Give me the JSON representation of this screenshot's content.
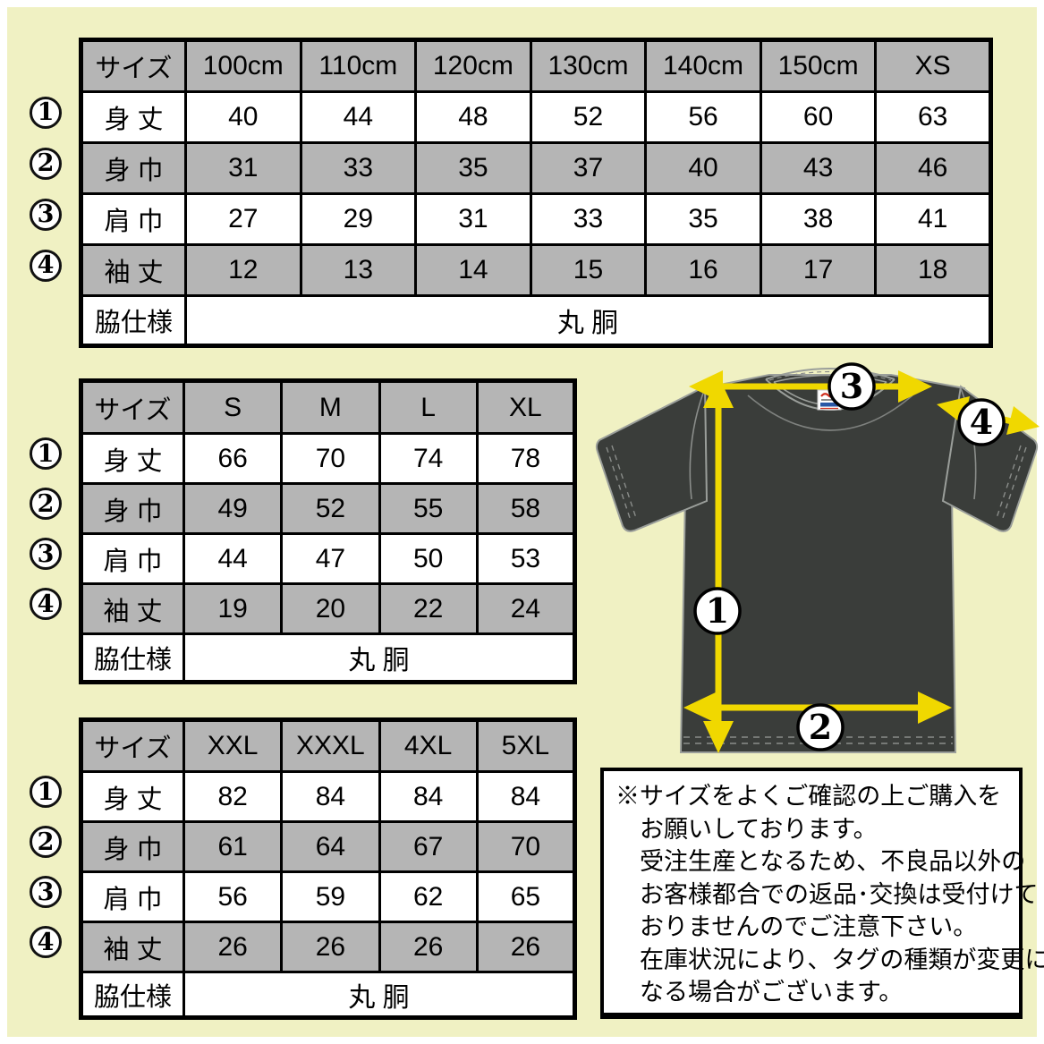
{
  "colors": {
    "background": "#f0f1c3",
    "table_shade": "#b5b5b5",
    "shirt": "#3a3d3a",
    "shirt_outline": "#9a9e9a",
    "arrow_yellow": "#f0d800"
  },
  "tables": [
    {
      "name": "kids-size",
      "header": [
        "サイズ",
        "100cm",
        "110cm",
        "120cm",
        "130cm",
        "140cm",
        "150cm",
        "XS"
      ],
      "rows": [
        {
          "num": "1",
          "label": "身 丈",
          "values": [
            "40",
            "44",
            "48",
            "52",
            "56",
            "60",
            "63"
          ]
        },
        {
          "num": "2",
          "label": "身 巾",
          "values": [
            "31",
            "33",
            "35",
            "37",
            "40",
            "43",
            "46"
          ]
        },
        {
          "num": "3",
          "label": "肩 巾",
          "values": [
            "27",
            "29",
            "31",
            "33",
            "35",
            "38",
            "41"
          ]
        },
        {
          "num": "4",
          "label": "袖 丈",
          "values": [
            "12",
            "13",
            "14",
            "15",
            "16",
            "17",
            "18"
          ]
        }
      ],
      "footer": {
        "label": "脇仕様",
        "value": "丸 胴"
      }
    },
    {
      "name": "adult-s-xl",
      "header": [
        "サイズ",
        "S",
        "M",
        "L",
        "XL"
      ],
      "rows": [
        {
          "num": "1",
          "label": "身 丈",
          "values": [
            "66",
            "70",
            "74",
            "78"
          ]
        },
        {
          "num": "2",
          "label": "身 巾",
          "values": [
            "49",
            "52",
            "55",
            "58"
          ]
        },
        {
          "num": "3",
          "label": "肩 巾",
          "values": [
            "44",
            "47",
            "50",
            "53"
          ]
        },
        {
          "num": "4",
          "label": "袖 丈",
          "values": [
            "19",
            "20",
            "22",
            "24"
          ]
        }
      ],
      "footer": {
        "label": "脇仕様",
        "value": "丸 胴"
      }
    },
    {
      "name": "adult-xxl-5xl",
      "header": [
        "サイズ",
        "XXL",
        "XXXL",
        "4XL",
        "5XL"
      ],
      "rows": [
        {
          "num": "1",
          "label": "身 丈",
          "values": [
            "82",
            "84",
            "84",
            "84"
          ]
        },
        {
          "num": "2",
          "label": "身 巾",
          "values": [
            "61",
            "64",
            "67",
            "70"
          ]
        },
        {
          "num": "3",
          "label": "肩 巾",
          "values": [
            "56",
            "59",
            "62",
            "65"
          ]
        },
        {
          "num": "4",
          "label": "袖 丈",
          "values": [
            "26",
            "26",
            "26",
            "26"
          ]
        }
      ],
      "footer": {
        "label": "脇仕様",
        "value": "丸 胴"
      }
    }
  ],
  "diagram": {
    "badges": [
      {
        "num": "1"
      },
      {
        "num": "2"
      },
      {
        "num": "3"
      },
      {
        "num": "4"
      }
    ],
    "collar_tag_icon": "printstar-brand-tag"
  },
  "note": {
    "lines": [
      "※サイズをよくご確認の上ご購入を",
      "お願いしております。",
      "受注生産となるため、不良品以外の",
      "お客様都合での返品･交換は受付けて",
      "おりませんのでご注意下さい。",
      "在庫状況により、タグの種類が変更に",
      "なる場合がございます。"
    ]
  }
}
